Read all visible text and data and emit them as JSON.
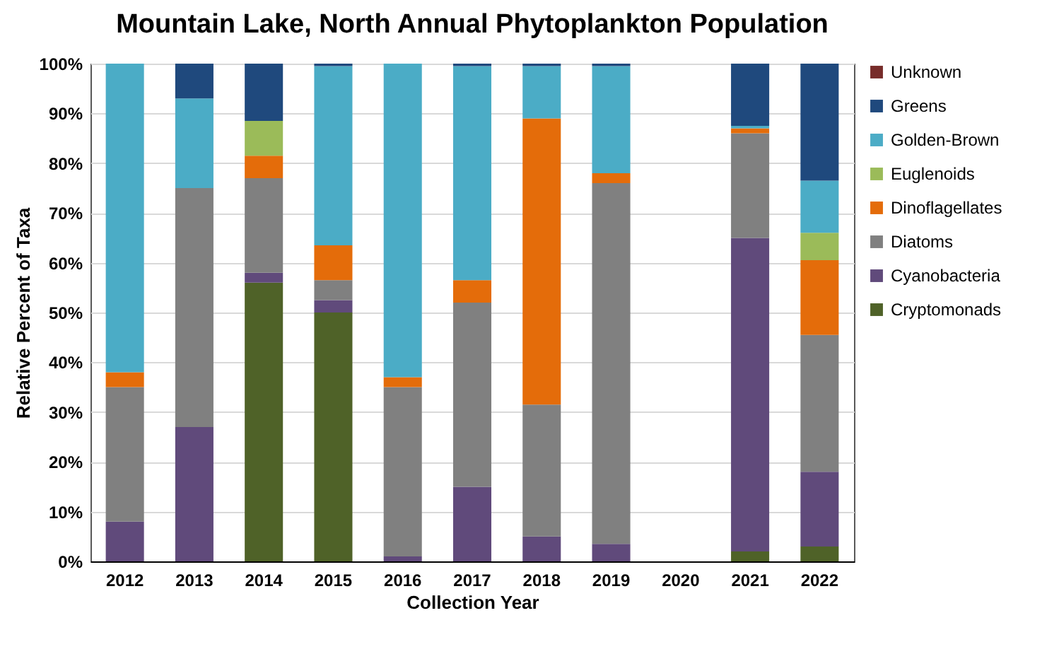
{
  "chart_data": {
    "type": "bar",
    "stacked": true,
    "title": "Mountain Lake, North Annual Phytoplankton Population",
    "xlabel": "Collection Year",
    "ylabel": "Relative Percent of Taxa",
    "categories": [
      "2012",
      "2013",
      "2014",
      "2015",
      "2016",
      "2017",
      "2018",
      "2019",
      "2020",
      "2021",
      "2022"
    ],
    "series": [
      {
        "name": "Cryptomonads",
        "color": "#4f6228",
        "values": [
          0,
          0,
          56,
          50,
          0,
          0,
          0,
          0,
          null,
          2,
          3
        ]
      },
      {
        "name": "Cyanobacteria",
        "color": "#604a7b",
        "values": [
          8,
          27,
          2,
          2.5,
          1,
          15,
          5,
          3.5,
          null,
          63,
          15
        ]
      },
      {
        "name": "Diatoms",
        "color": "#808080",
        "values": [
          27,
          48,
          19,
          4,
          34,
          37,
          26.5,
          72.5,
          null,
          21,
          27.5
        ]
      },
      {
        "name": "Dinoflagellates",
        "color": "#e46c0a",
        "values": [
          3,
          0,
          4.5,
          7,
          2,
          4.5,
          57.5,
          2,
          null,
          1,
          15
        ]
      },
      {
        "name": "Euglenoids",
        "color": "#9bbb59",
        "values": [
          0,
          0,
          7,
          0,
          0,
          0,
          0,
          0,
          null,
          0,
          5.5
        ]
      },
      {
        "name": "Golden-Brown",
        "color": "#4bacc6",
        "values": [
          62,
          18,
          0,
          36,
          63,
          43,
          10.5,
          21.5,
          null,
          0.5,
          10.5
        ]
      },
      {
        "name": "Greens",
        "color": "#1f497d",
        "values": [
          0,
          7,
          11.5,
          0.5,
          0,
          0.5,
          0.5,
          0.5,
          null,
          12.5,
          23.5
        ]
      },
      {
        "name": "Unknown",
        "color": "#772c2a",
        "values": [
          0,
          0,
          0,
          0,
          0,
          0,
          0,
          0,
          null,
          0,
          0
        ]
      }
    ],
    "ylim": [
      0,
      100
    ],
    "yticks": [
      {
        "value": 0,
        "label": "0%"
      },
      {
        "value": 10,
        "label": "10%"
      },
      {
        "value": 20,
        "label": "20%"
      },
      {
        "value": 30,
        "label": "30%"
      },
      {
        "value": 40,
        "label": "40%"
      },
      {
        "value": 50,
        "label": "50%"
      },
      {
        "value": 60,
        "label": "60%"
      },
      {
        "value": 70,
        "label": "70%"
      },
      {
        "value": 80,
        "label": "80%"
      },
      {
        "value": 90,
        "label": "90%"
      },
      {
        "value": 100,
        "label": "100%"
      }
    ],
    "grid": "y",
    "legend": "right"
  }
}
